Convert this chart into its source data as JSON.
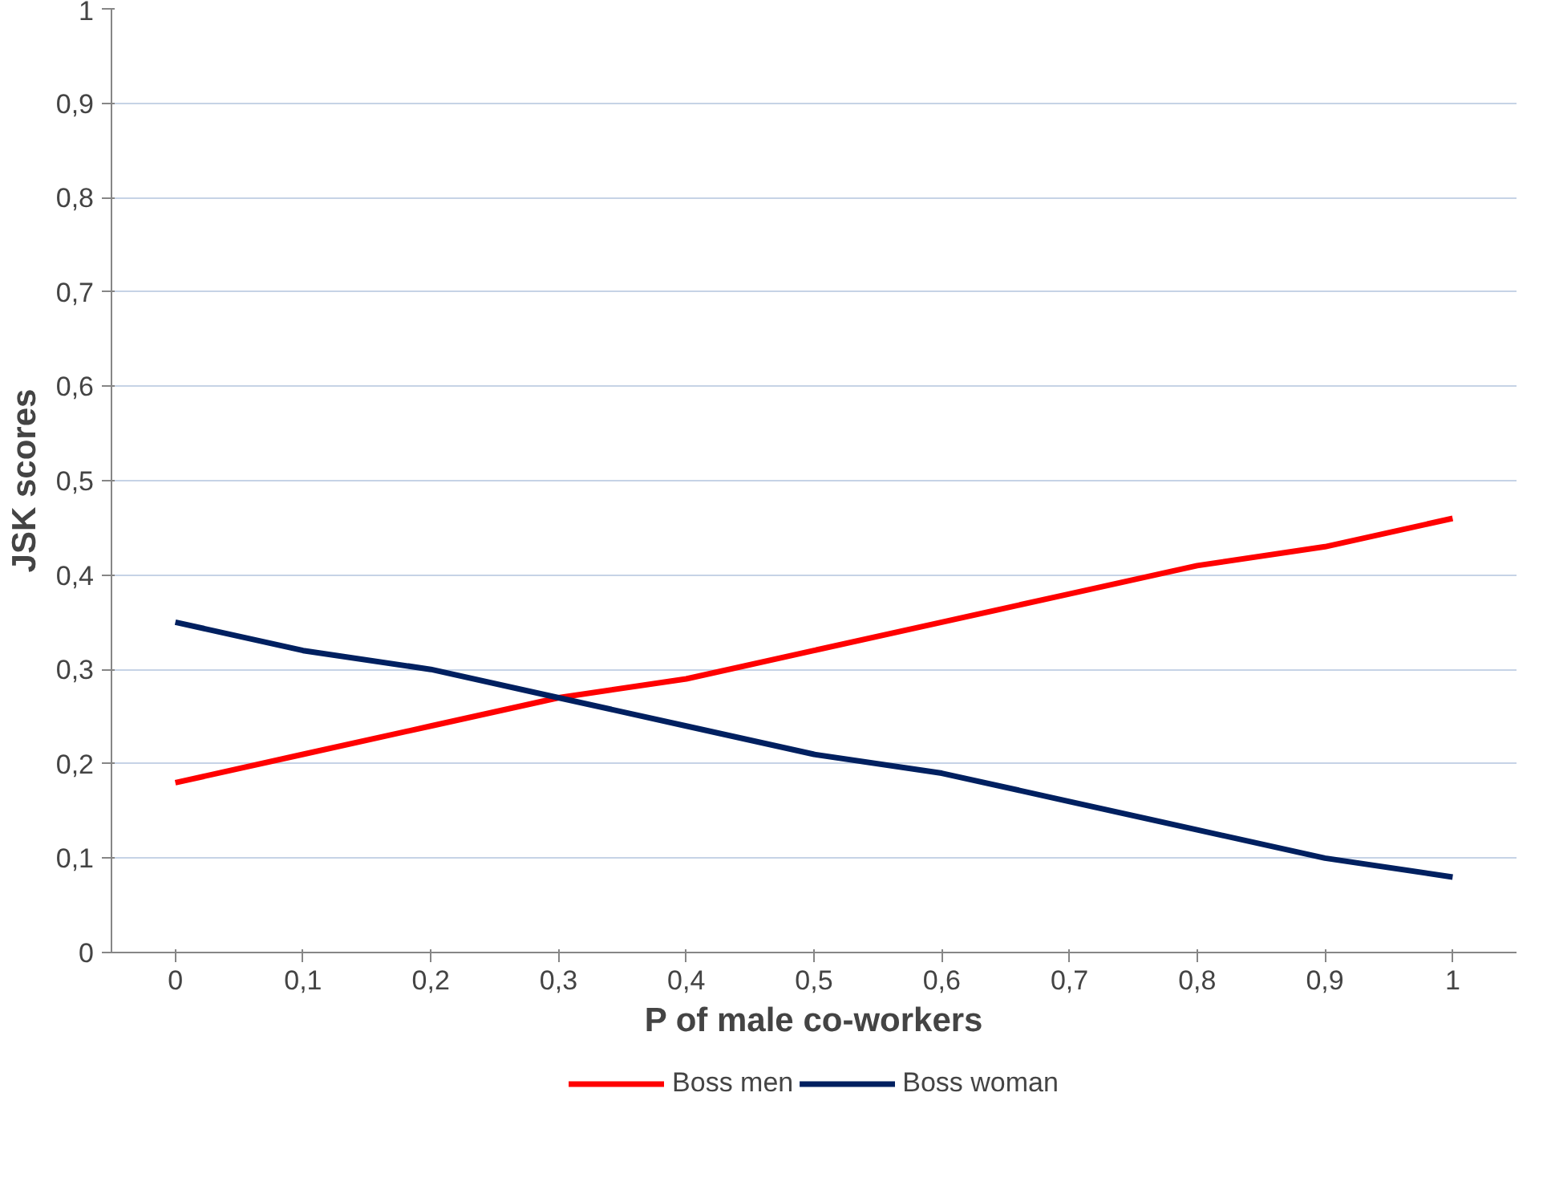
{
  "chart_data": {
    "type": "line",
    "xlabel": "P of male co-workers",
    "ylabel": "JSK scores",
    "categories": [
      "0",
      "0,1",
      "0,2",
      "0,3",
      "0,4",
      "0,5",
      "0,6",
      "0,7",
      "0,8",
      "0,9",
      "1"
    ],
    "series": [
      {
        "name": "Boss men",
        "color": "#ff0000",
        "values": [
          0.18,
          0.21,
          0.24,
          0.27,
          0.29,
          0.32,
          0.35,
          0.38,
          0.41,
          0.43,
          0.46
        ]
      },
      {
        "name": "Boss woman",
        "color": "#002060",
        "values": [
          0.35,
          0.32,
          0.3,
          0.27,
          0.24,
          0.21,
          0.19,
          0.16,
          0.13,
          0.1,
          0.08
        ]
      }
    ],
    "ylim": [
      0,
      1
    ],
    "yticks": [
      0,
      {
        "value": 0.1,
        "label": "0,1"
      },
      {
        "value": 0.2,
        "label": "0,2"
      },
      {
        "value": 0.3,
        "label": "0,3"
      },
      {
        "value": 0.4,
        "label": "0,4"
      },
      {
        "value": 0.5,
        "label": "0,5"
      },
      {
        "value": 0.6,
        "label": "0,6"
      },
      {
        "value": 0.7,
        "label": "0,7"
      },
      {
        "value": 0.8,
        "label": "0,8"
      },
      {
        "value": 0.9,
        "label": "0,9"
      },
      1
    ],
    "grid": "y",
    "legend": "bottom",
    "marker": "none",
    "line_style": "solid"
  }
}
